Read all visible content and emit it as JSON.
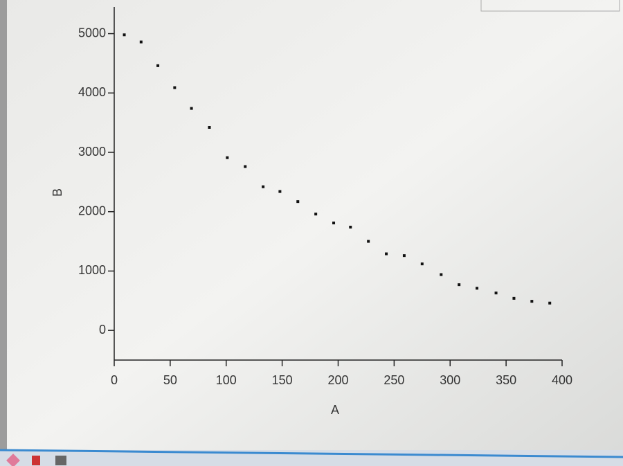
{
  "chart_data": {
    "type": "scatter",
    "x_label": "A",
    "y_label": "B",
    "x": [
      9,
      24,
      39,
      54,
      69,
      85,
      101,
      117,
      133,
      148,
      164,
      180,
      196,
      211,
      227,
      243,
      259,
      275,
      292,
      308,
      324,
      341,
      357,
      373,
      389
    ],
    "values": [
      4980,
      4860,
      4460,
      4090,
      3740,
      3420,
      2910,
      2760,
      2420,
      2340,
      2170,
      1960,
      1810,
      1740,
      1500,
      1290,
      1260,
      1120,
      940,
      770,
      710,
      630,
      540,
      490,
      460
    ],
    "color": "#111111",
    "xlim": [
      0,
      400
    ],
    "xticks": [
      0,
      50,
      100,
      150,
      200,
      250,
      300,
      350,
      400
    ],
    "ylim": [
      -500,
      5450
    ],
    "yticks": [
      0,
      1000,
      2000,
      3000,
      4000,
      5000
    ]
  }
}
